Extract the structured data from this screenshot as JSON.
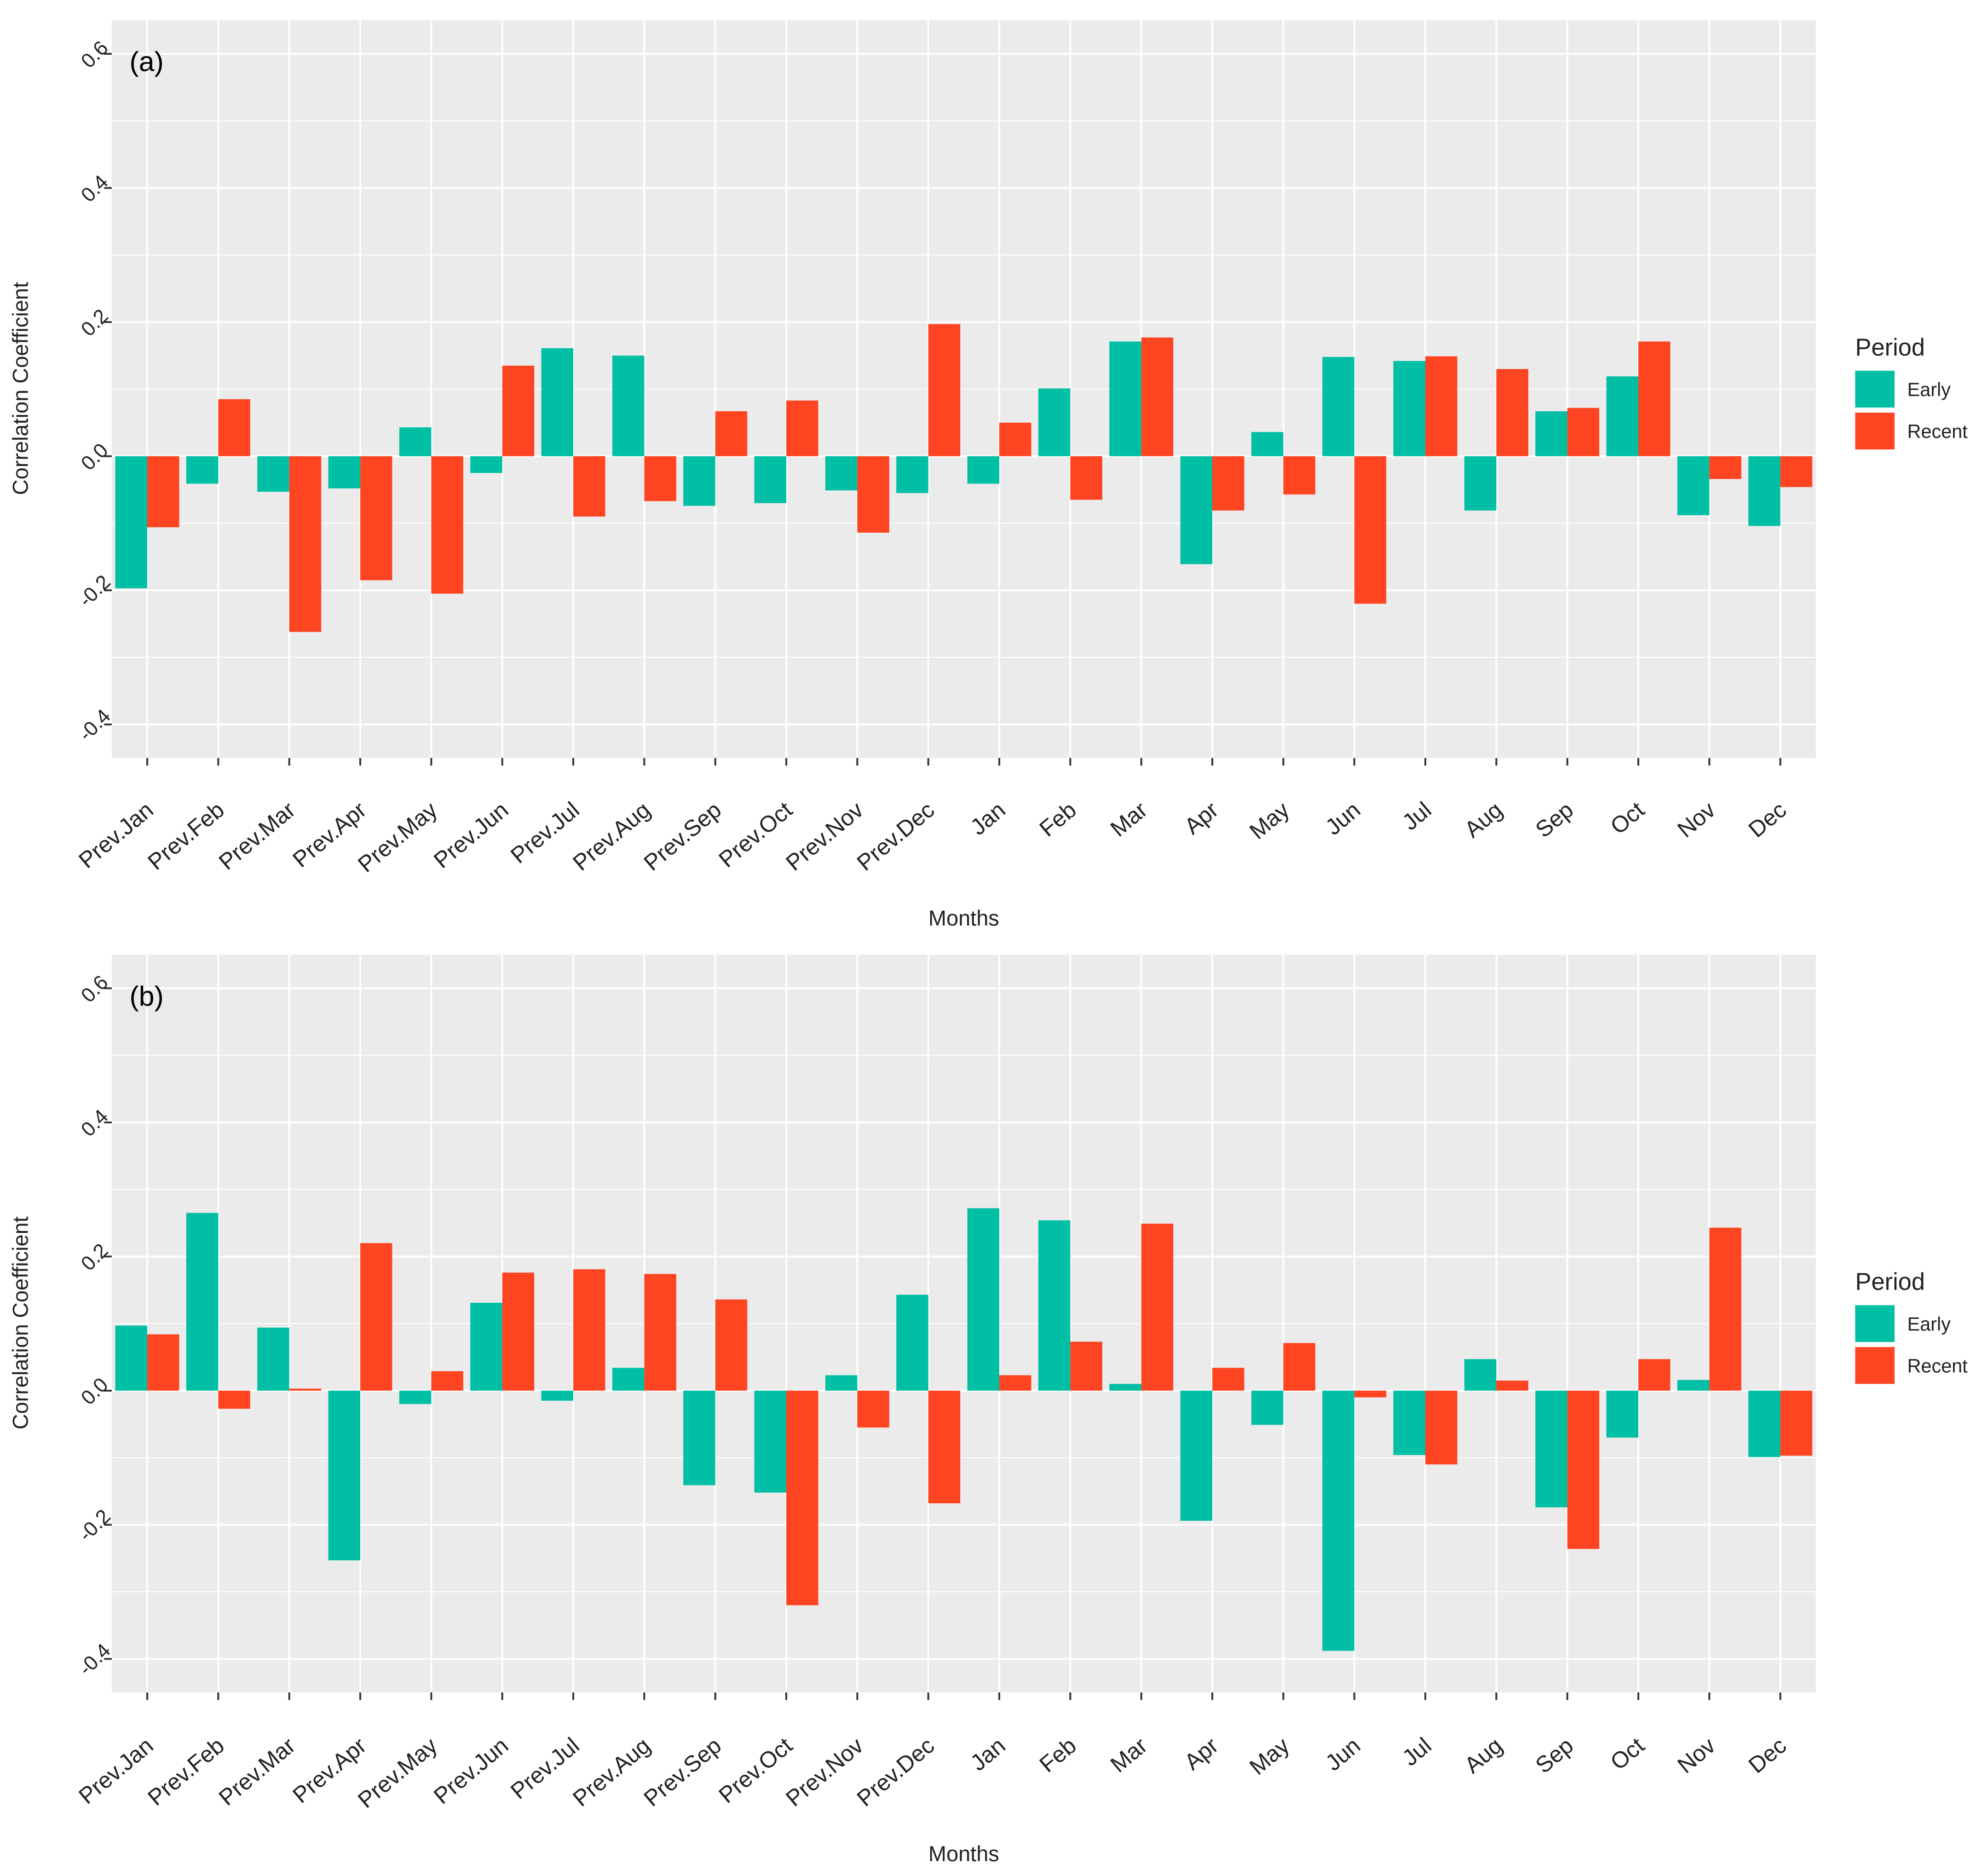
{
  "colors": {
    "early": "#00BFA5",
    "recent": "#FF4422",
    "panel_bg": "#EBEBEB",
    "grid": "#FFFFFF",
    "text": "#222222"
  },
  "legend": {
    "title": "Period",
    "items": [
      {
        "label": "Early",
        "color": "#00BFA5"
      },
      {
        "label": "Recent",
        "color": "#FF4422"
      }
    ]
  },
  "chart_data": [
    {
      "type": "bar",
      "panel_label": "(a)",
      "xlabel": "Months",
      "ylabel": "Correlation Coefficient",
      "ylim": [
        -0.45,
        0.65
      ],
      "yticks": [
        "0.6",
        "0.4",
        "0.2",
        "0.0",
        "-0.2",
        "-0.4"
      ],
      "ytick_values": [
        0.6,
        0.4,
        0.2,
        0.0,
        -0.2,
        -0.4
      ],
      "categories": [
        "Prev.Jan",
        "Prev.Feb",
        "Prev.Mar",
        "Prev.Apr",
        "Prev.May",
        "Prev.Jun",
        "Prev.Jul",
        "Prev.Aug",
        "Prev.Sep",
        "Prev.Oct",
        "Prev.Nov",
        "Prev.Dec",
        "Jan",
        "Feb",
        "Mar",
        "Apr",
        "May",
        "Jun",
        "Jul",
        "Aug",
        "Sep",
        "Oct",
        "Nov",
        "Dec"
      ],
      "series": [
        {
          "name": "Early",
          "values": [
            -0.197,
            -0.041,
            -0.053,
            -0.048,
            0.043,
            -0.025,
            0.161,
            0.15,
            -0.074,
            -0.07,
            -0.051,
            -0.055,
            -0.041,
            0.101,
            0.171,
            -0.161,
            0.036,
            0.148,
            0.142,
            -0.081,
            0.067,
            0.119,
            -0.088,
            -0.104
          ]
        },
        {
          "name": "Recent",
          "values": [
            -0.106,
            0.085,
            -0.262,
            -0.185,
            -0.205,
            0.135,
            -0.09,
            -0.067,
            0.067,
            0.083,
            -0.114,
            0.197,
            0.05,
            -0.065,
            0.177,
            -0.081,
            -0.057,
            -0.22,
            0.149,
            0.13,
            0.072,
            0.171,
            -0.034,
            -0.046
          ]
        }
      ]
    },
    {
      "type": "bar",
      "panel_label": "(b)",
      "xlabel": "Months",
      "ylabel": "Correlation Coefficient",
      "ylim": [
        -0.45,
        0.65
      ],
      "yticks": [
        "0.6",
        "0.4",
        "0.2",
        "0.0",
        "-0.2",
        "-0.4"
      ],
      "ytick_values": [
        0.6,
        0.4,
        0.2,
        0.0,
        -0.2,
        -0.4
      ],
      "categories": [
        "Prev.Jan",
        "Prev.Feb",
        "Prev.Mar",
        "Prev.Apr",
        "Prev.May",
        "Prev.Jun",
        "Prev.Jul",
        "Prev.Aug",
        "Prev.Sep",
        "Prev.Oct",
        "Prev.Nov",
        "Prev.Dec",
        "Jan",
        "Feb",
        "Mar",
        "Apr",
        "May",
        "Jun",
        "Jul",
        "Aug",
        "Sep",
        "Oct",
        "Nov",
        "Dec"
      ],
      "series": [
        {
          "name": "Early",
          "values": [
            0.097,
            0.265,
            0.094,
            -0.253,
            -0.02,
            0.131,
            -0.015,
            0.034,
            -0.141,
            -0.152,
            0.023,
            0.143,
            0.272,
            0.254,
            0.01,
            -0.194,
            -0.051,
            -0.388,
            -0.096,
            0.047,
            -0.174,
            -0.07,
            0.016,
            -0.099
          ]
        },
        {
          "name": "Recent",
          "values": [
            0.084,
            -0.027,
            0.003,
            0.22,
            0.029,
            0.176,
            0.181,
            0.174,
            0.136,
            -0.32,
            -0.055,
            -0.168,
            0.023,
            0.073,
            0.249,
            0.034,
            0.071,
            -0.01,
            -0.11,
            0.015,
            -0.236,
            0.047,
            0.243,
            -0.097
          ]
        }
      ]
    }
  ]
}
